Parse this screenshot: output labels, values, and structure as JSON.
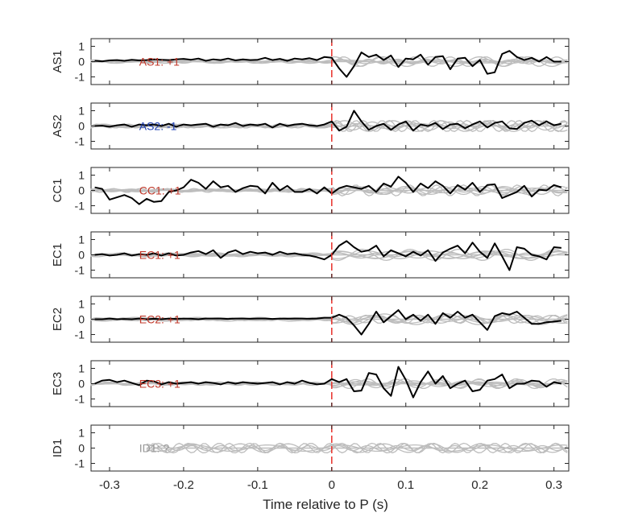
{
  "chart_data": {
    "type": "line",
    "xlabel": "Time relative to P (s)",
    "xlim": [
      -0.325,
      0.32
    ],
    "xticks": [
      -0.3,
      -0.2,
      -0.1,
      0,
      0.1,
      0.2,
      0.3
    ],
    "xtick_labels": [
      "-0.3",
      "-0.2",
      "-0.1",
      "0",
      "0.1",
      "0.2",
      "0.3"
    ],
    "ylim": [
      -1.5,
      1.5
    ],
    "yticks": [
      -1,
      0,
      1
    ],
    "ytick_labels": [
      "-1",
      "0",
      "1"
    ],
    "marker_line": {
      "x": 0,
      "color": "#e8302a"
    },
    "trace_color": "#000000",
    "ghost_color": "#bdbdbd",
    "panels": [
      {
        "ylabel": "AS1",
        "annotation": "AS1: +1",
        "annotation_color": "#c0392b",
        "x": [
          -0.32,
          -0.31,
          -0.3,
          -0.29,
          -0.28,
          -0.27,
          -0.26,
          -0.25,
          -0.24,
          -0.23,
          -0.22,
          -0.21,
          -0.2,
          -0.19,
          -0.18,
          -0.17,
          -0.16,
          -0.15,
          -0.14,
          -0.13,
          -0.12,
          -0.11,
          -0.1,
          -0.09,
          -0.08,
          -0.07,
          -0.06,
          -0.05,
          -0.04,
          -0.03,
          -0.02,
          -0.01,
          0,
          0.01,
          0.02,
          0.03,
          0.04,
          0.05,
          0.06,
          0.07,
          0.08,
          0.09,
          0.1,
          0.11,
          0.12,
          0.13,
          0.14,
          0.15,
          0.16,
          0.17,
          0.18,
          0.19,
          0.2,
          0.21,
          0.22,
          0.23,
          0.24,
          0.25,
          0.26,
          0.27,
          0.28,
          0.29,
          0.3,
          0.31
        ],
        "y": [
          0.05,
          0.02,
          0.08,
          0.1,
          0.05,
          0.12,
          0.08,
          0.1,
          0.15,
          0.12,
          0.1,
          0.15,
          0.18,
          0.12,
          0.2,
          0.05,
          0.15,
          0.1,
          0.2,
          0.08,
          0.15,
          0.1,
          0.12,
          0.25,
          0.1,
          0.18,
          0.05,
          0.2,
          0.15,
          0.22,
          0.1,
          0.3,
          0.25,
          -0.45,
          -1.0,
          -0.3,
          0.6,
          0.3,
          0.45,
          0.1,
          0.4,
          -0.35,
          0.2,
          0.15,
          0.45,
          -0.2,
          0.3,
          0.35,
          -0.5,
          0.2,
          0.25,
          -0.3,
          0.1,
          -0.8,
          -0.7,
          0.5,
          0.7,
          0.3,
          0.1,
          0.25,
          0.0,
          0.3,
          0.0,
          0.0
        ]
      },
      {
        "ylabel": "AS2",
        "annotation": "AS2: -1",
        "annotation_color": "#1f3fb3",
        "x": [
          -0.32,
          -0.31,
          -0.3,
          -0.29,
          -0.28,
          -0.27,
          -0.26,
          -0.25,
          -0.24,
          -0.23,
          -0.22,
          -0.21,
          -0.2,
          -0.19,
          -0.18,
          -0.17,
          -0.16,
          -0.15,
          -0.14,
          -0.13,
          -0.12,
          -0.11,
          -0.1,
          -0.09,
          -0.08,
          -0.07,
          -0.06,
          -0.05,
          -0.04,
          -0.03,
          -0.02,
          -0.01,
          0,
          0.01,
          0.02,
          0.03,
          0.04,
          0.05,
          0.06,
          0.07,
          0.08,
          0.09,
          0.1,
          0.11,
          0.12,
          0.13,
          0.14,
          0.15,
          0.16,
          0.17,
          0.18,
          0.19,
          0.2,
          0.21,
          0.22,
          0.23,
          0.24,
          0.25,
          0.26,
          0.27,
          0.28,
          0.29,
          0.3,
          0.31
        ],
        "y": [
          0.0,
          0.02,
          -0.05,
          0.05,
          0.1,
          -0.05,
          0.1,
          0.05,
          0.1,
          0.0,
          0.15,
          -0.05,
          0.1,
          0.05,
          0.1,
          0.15,
          -0.05,
          0.1,
          0.05,
          0.2,
          0.0,
          0.1,
          0.05,
          0.15,
          -0.1,
          0.15,
          0.0,
          0.1,
          0.15,
          0.05,
          0.0,
          0.1,
          0.3,
          -0.3,
          -0.05,
          1.0,
          0.3,
          -0.25,
          0.0,
          0.15,
          -0.25,
          0.1,
          0.3,
          -0.3,
          0.1,
          0.0,
          0.2,
          -0.2,
          0.1,
          0.15,
          -0.15,
          0.1,
          0.3,
          -0.1,
          0.2,
          0.3,
          -0.15,
          -0.2,
          0.2,
          0.35,
          0.05,
          0.3,
          0.05,
          0.15
        ]
      },
      {
        "ylabel": "CC1",
        "annotation": "CC1: +1",
        "annotation_color": "#c0392b",
        "x": [
          -0.32,
          -0.31,
          -0.3,
          -0.29,
          -0.28,
          -0.27,
          -0.26,
          -0.25,
          -0.24,
          -0.23,
          -0.22,
          -0.21,
          -0.2,
          -0.19,
          -0.18,
          -0.17,
          -0.16,
          -0.15,
          -0.14,
          -0.13,
          -0.12,
          -0.11,
          -0.1,
          -0.09,
          -0.08,
          -0.07,
          -0.06,
          -0.05,
          -0.04,
          -0.03,
          -0.02,
          -0.01,
          0,
          0.01,
          0.02,
          0.03,
          0.04,
          0.05,
          0.06,
          0.07,
          0.08,
          0.09,
          0.1,
          0.11,
          0.12,
          0.13,
          0.14,
          0.15,
          0.16,
          0.17,
          0.18,
          0.19,
          0.2,
          0.21,
          0.22,
          0.23,
          0.24,
          0.25,
          0.26,
          0.27,
          0.28,
          0.29,
          0.3,
          0.31
        ],
        "y": [
          0.2,
          0.1,
          -0.6,
          -0.45,
          -0.3,
          -0.5,
          -0.9,
          -0.55,
          -0.75,
          -0.7,
          -0.1,
          0.0,
          0.2,
          0.7,
          0.5,
          0.1,
          0.6,
          0.2,
          0.3,
          -0.1,
          0.15,
          0.3,
          0.25,
          -0.2,
          0.5,
          0.0,
          0.3,
          -0.1,
          -0.1,
          0.1,
          -0.2,
          0.2,
          -0.2,
          0.15,
          0.3,
          0.2,
          0.1,
          0.3,
          -0.1,
          0.45,
          0.25,
          0.9,
          0.5,
          -0.1,
          0.45,
          0.15,
          0.6,
          0.3,
          -0.2,
          0.35,
          0.05,
          0.5,
          -0.1,
          0.35,
          0.4,
          -0.5,
          -0.3,
          -0.1,
          0.3,
          -0.4,
          0.05,
          0.0,
          0.35,
          0.2
        ]
      },
      {
        "ylabel": "EC1",
        "annotation": "EC1: +1",
        "annotation_color": "#c0392b",
        "x": [
          -0.32,
          -0.31,
          -0.3,
          -0.29,
          -0.28,
          -0.27,
          -0.26,
          -0.25,
          -0.24,
          -0.23,
          -0.22,
          -0.21,
          -0.2,
          -0.19,
          -0.18,
          -0.17,
          -0.16,
          -0.15,
          -0.14,
          -0.13,
          -0.12,
          -0.11,
          -0.1,
          -0.09,
          -0.08,
          -0.07,
          -0.06,
          -0.05,
          -0.04,
          -0.03,
          -0.02,
          -0.01,
          0,
          0.01,
          0.02,
          0.03,
          0.04,
          0.05,
          0.06,
          0.07,
          0.08,
          0.09,
          0.1,
          0.11,
          0.12,
          0.13,
          0.14,
          0.15,
          0.16,
          0.17,
          0.18,
          0.19,
          0.2,
          0.21,
          0.22,
          0.23,
          0.24,
          0.25,
          0.26,
          0.27,
          0.28,
          0.29,
          0.3,
          0.31
        ],
        "y": [
          0.0,
          0.05,
          -0.05,
          0.0,
          0.1,
          -0.05,
          0.05,
          0.0,
          0.1,
          -0.05,
          0.1,
          -0.05,
          0.0,
          0.15,
          0.25,
          0.05,
          0.3,
          -0.2,
          0.15,
          0.3,
          0.05,
          0.2,
          0.1,
          0.15,
          0.0,
          0.2,
          0.05,
          0.1,
          0.0,
          -0.05,
          -0.15,
          -0.3,
          0.0,
          0.6,
          0.9,
          0.5,
          0.2,
          0.3,
          0.6,
          -0.1,
          0.3,
          0.1,
          -0.1,
          0.2,
          -0.05,
          0.3,
          -0.4,
          0.15,
          0.4,
          0.6,
          0.1,
          0.8,
          0.2,
          -0.2,
          0.75,
          -0.1,
          -1.0,
          0.5,
          0.4,
          0.0,
          -0.1,
          -0.3,
          0.5,
          0.45
        ]
      },
      {
        "ylabel": "EC2",
        "annotation": "EC2: +1",
        "annotation_color": "#c0392b",
        "x": [
          -0.32,
          -0.31,
          -0.3,
          -0.29,
          -0.28,
          -0.27,
          -0.26,
          -0.25,
          -0.24,
          -0.23,
          -0.22,
          -0.21,
          -0.2,
          -0.19,
          -0.18,
          -0.17,
          -0.16,
          -0.15,
          -0.14,
          -0.13,
          -0.12,
          -0.11,
          -0.1,
          -0.09,
          -0.08,
          -0.07,
          -0.06,
          -0.05,
          -0.04,
          -0.03,
          -0.02,
          -0.01,
          0,
          0.01,
          0.02,
          0.03,
          0.04,
          0.05,
          0.06,
          0.07,
          0.08,
          0.09,
          0.1,
          0.11,
          0.12,
          0.13,
          0.14,
          0.15,
          0.16,
          0.17,
          0.18,
          0.19,
          0.2,
          0.21,
          0.22,
          0.23,
          0.24,
          0.25,
          0.26,
          0.27,
          0.28,
          0.29,
          0.3,
          0.31
        ],
        "y": [
          0.0,
          0.0,
          0.05,
          0.0,
          0.02,
          0.0,
          0.05,
          0.0,
          0.03,
          0.0,
          0.05,
          0.02,
          0.05,
          0.03,
          0.0,
          0.05,
          0.05,
          0.05,
          0.02,
          0.05,
          0.05,
          0.03,
          0.05,
          0.05,
          0.02,
          0.05,
          0.03,
          0.05,
          0.05,
          0.03,
          0.05,
          0.1,
          0.1,
          0.3,
          0.1,
          -0.4,
          -1.0,
          -0.3,
          0.5,
          -0.2,
          0.2,
          0.6,
          0.0,
          0.3,
          -0.1,
          0.3,
          -0.3,
          0.4,
          0.1,
          0.5,
          0.1,
          0.3,
          -0.2,
          -0.7,
          0.2,
          0.4,
          0.3,
          0.5,
          0.1,
          -0.3,
          -0.3,
          -0.2,
          -0.15,
          -0.1
        ]
      },
      {
        "ylabel": "EC3",
        "annotation": "EC3: +1",
        "annotation_color": "#c0392b",
        "x": [
          -0.32,
          -0.31,
          -0.3,
          -0.29,
          -0.28,
          -0.27,
          -0.26,
          -0.25,
          -0.24,
          -0.23,
          -0.22,
          -0.21,
          -0.2,
          -0.19,
          -0.18,
          -0.17,
          -0.16,
          -0.15,
          -0.14,
          -0.13,
          -0.12,
          -0.11,
          -0.1,
          -0.09,
          -0.08,
          -0.07,
          -0.06,
          -0.05,
          -0.04,
          -0.03,
          -0.02,
          -0.01,
          0,
          0.01,
          0.02,
          0.03,
          0.04,
          0.05,
          0.06,
          0.07,
          0.08,
          0.09,
          0.1,
          0.11,
          0.12,
          0.13,
          0.14,
          0.15,
          0.16,
          0.17,
          0.18,
          0.19,
          0.2,
          0.21,
          0.22,
          0.23,
          0.24,
          0.25,
          0.26,
          0.27,
          0.28,
          0.29,
          0.3,
          0.31
        ],
        "y": [
          0.0,
          0.2,
          0.25,
          0.1,
          0.2,
          0.05,
          -0.1,
          0.2,
          0.15,
          -0.05,
          0.1,
          0.0,
          0.05,
          0.1,
          0.0,
          0.1,
          0.05,
          -0.05,
          0.1,
          0.0,
          0.1,
          0.05,
          0.0,
          0.05,
          0.1,
          -0.05,
          0.1,
          0.0,
          0.2,
          0.05,
          -0.05,
          0.0,
          0.3,
          0.1,
          0.3,
          -0.5,
          -0.45,
          0.7,
          0.6,
          -0.3,
          -0.8,
          1.1,
          0.25,
          -0.9,
          0.1,
          0.8,
          0.0,
          0.5,
          -0.3,
          0.0,
          0.2,
          -0.5,
          -0.4,
          0.2,
          0.3,
          0.6,
          -0.3,
          0.0,
          0.0,
          0.2,
          0.15,
          -0.2,
          0.1,
          0.0
        ]
      },
      {
        "ylabel": "ID1",
        "annotation": "ID1: ?",
        "annotation_color": "#999999",
        "x": [],
        "y": []
      }
    ]
  }
}
